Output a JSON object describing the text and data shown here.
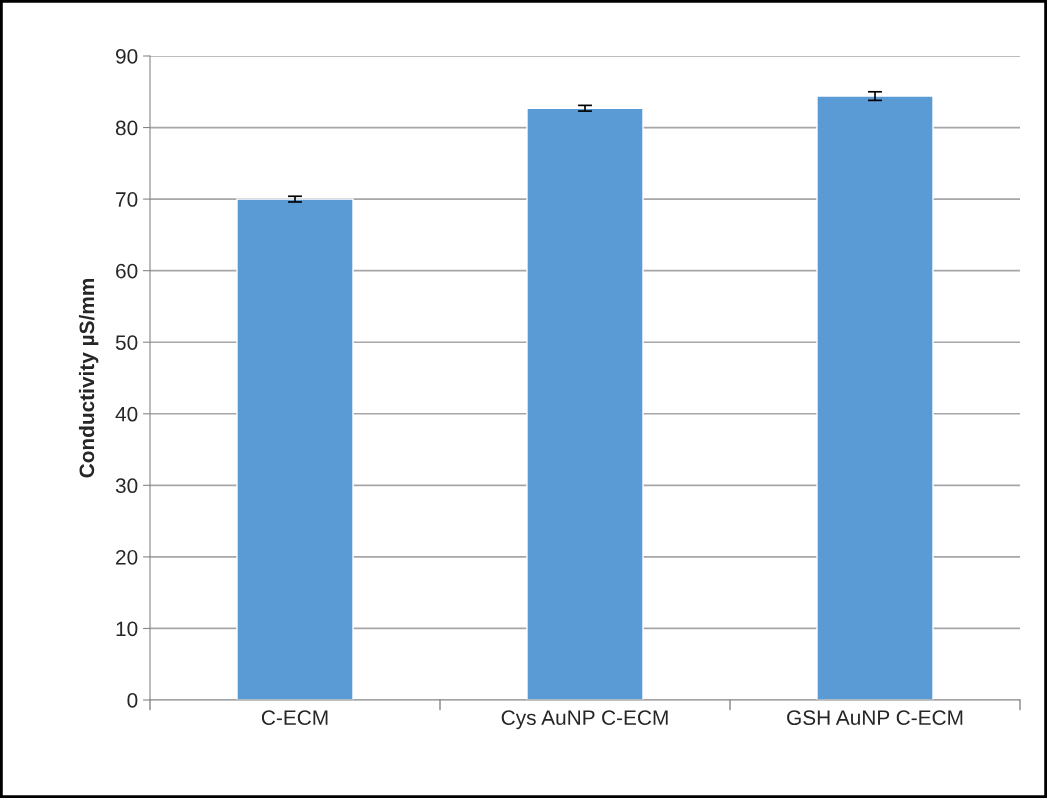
{
  "chart_data": {
    "type": "bar",
    "ylabel": "Conductivity µS/mm",
    "categories": [
      "C-ECM",
      "Cys AuNP C-ECM",
      "GSH AuNP C-ECM"
    ],
    "values": [
      70,
      82.7,
      84.4
    ],
    "errors": [
      0.4,
      0.4,
      0.6
    ],
    "color": "#5b9bd5",
    "ylim": [
      0,
      90
    ],
    "yticks": [
      0,
      10,
      20,
      30,
      40,
      50,
      60,
      70,
      80,
      90
    ],
    "grid": "y"
  }
}
